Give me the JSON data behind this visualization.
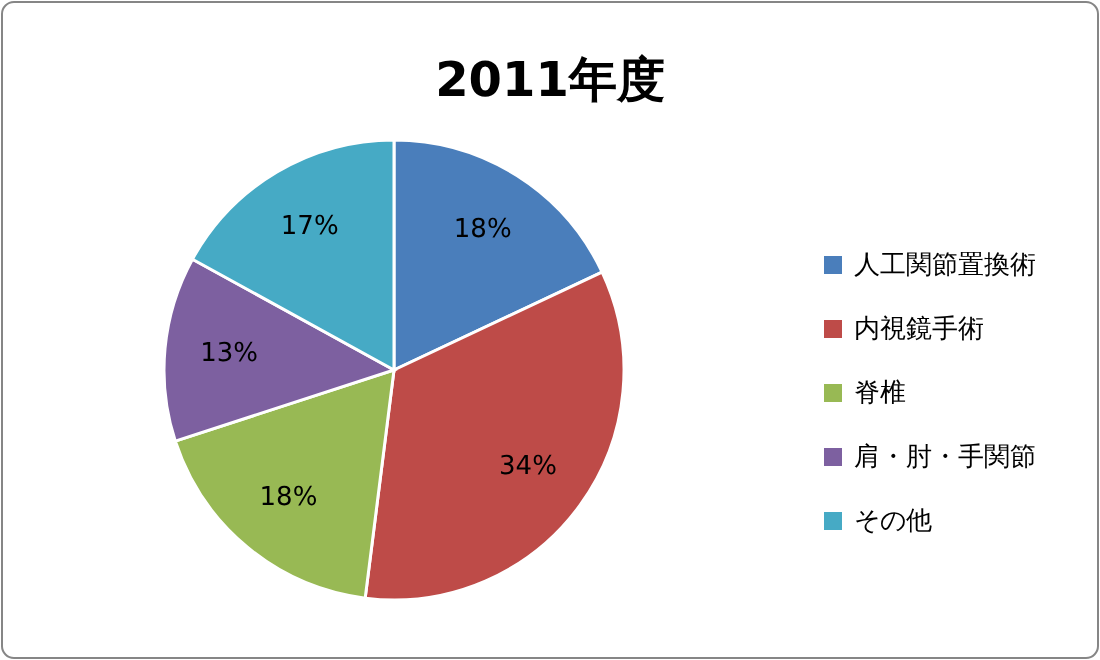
{
  "chart_data": {
    "type": "pie",
    "title": "2011年度",
    "categories": [
      "人工関節置換術",
      "内視鏡手術",
      "脊椎",
      "肩・肘・手関節",
      "その他"
    ],
    "values": [
      18,
      34,
      18,
      13,
      17
    ],
    "colors": [
      "#4a7ebb",
      "#be4b48",
      "#98b954",
      "#7d60a0",
      "#46aac5"
    ],
    "value_labels": [
      "18%",
      "34%",
      "18%",
      "13%",
      "17%"
    ],
    "legend": "right"
  }
}
